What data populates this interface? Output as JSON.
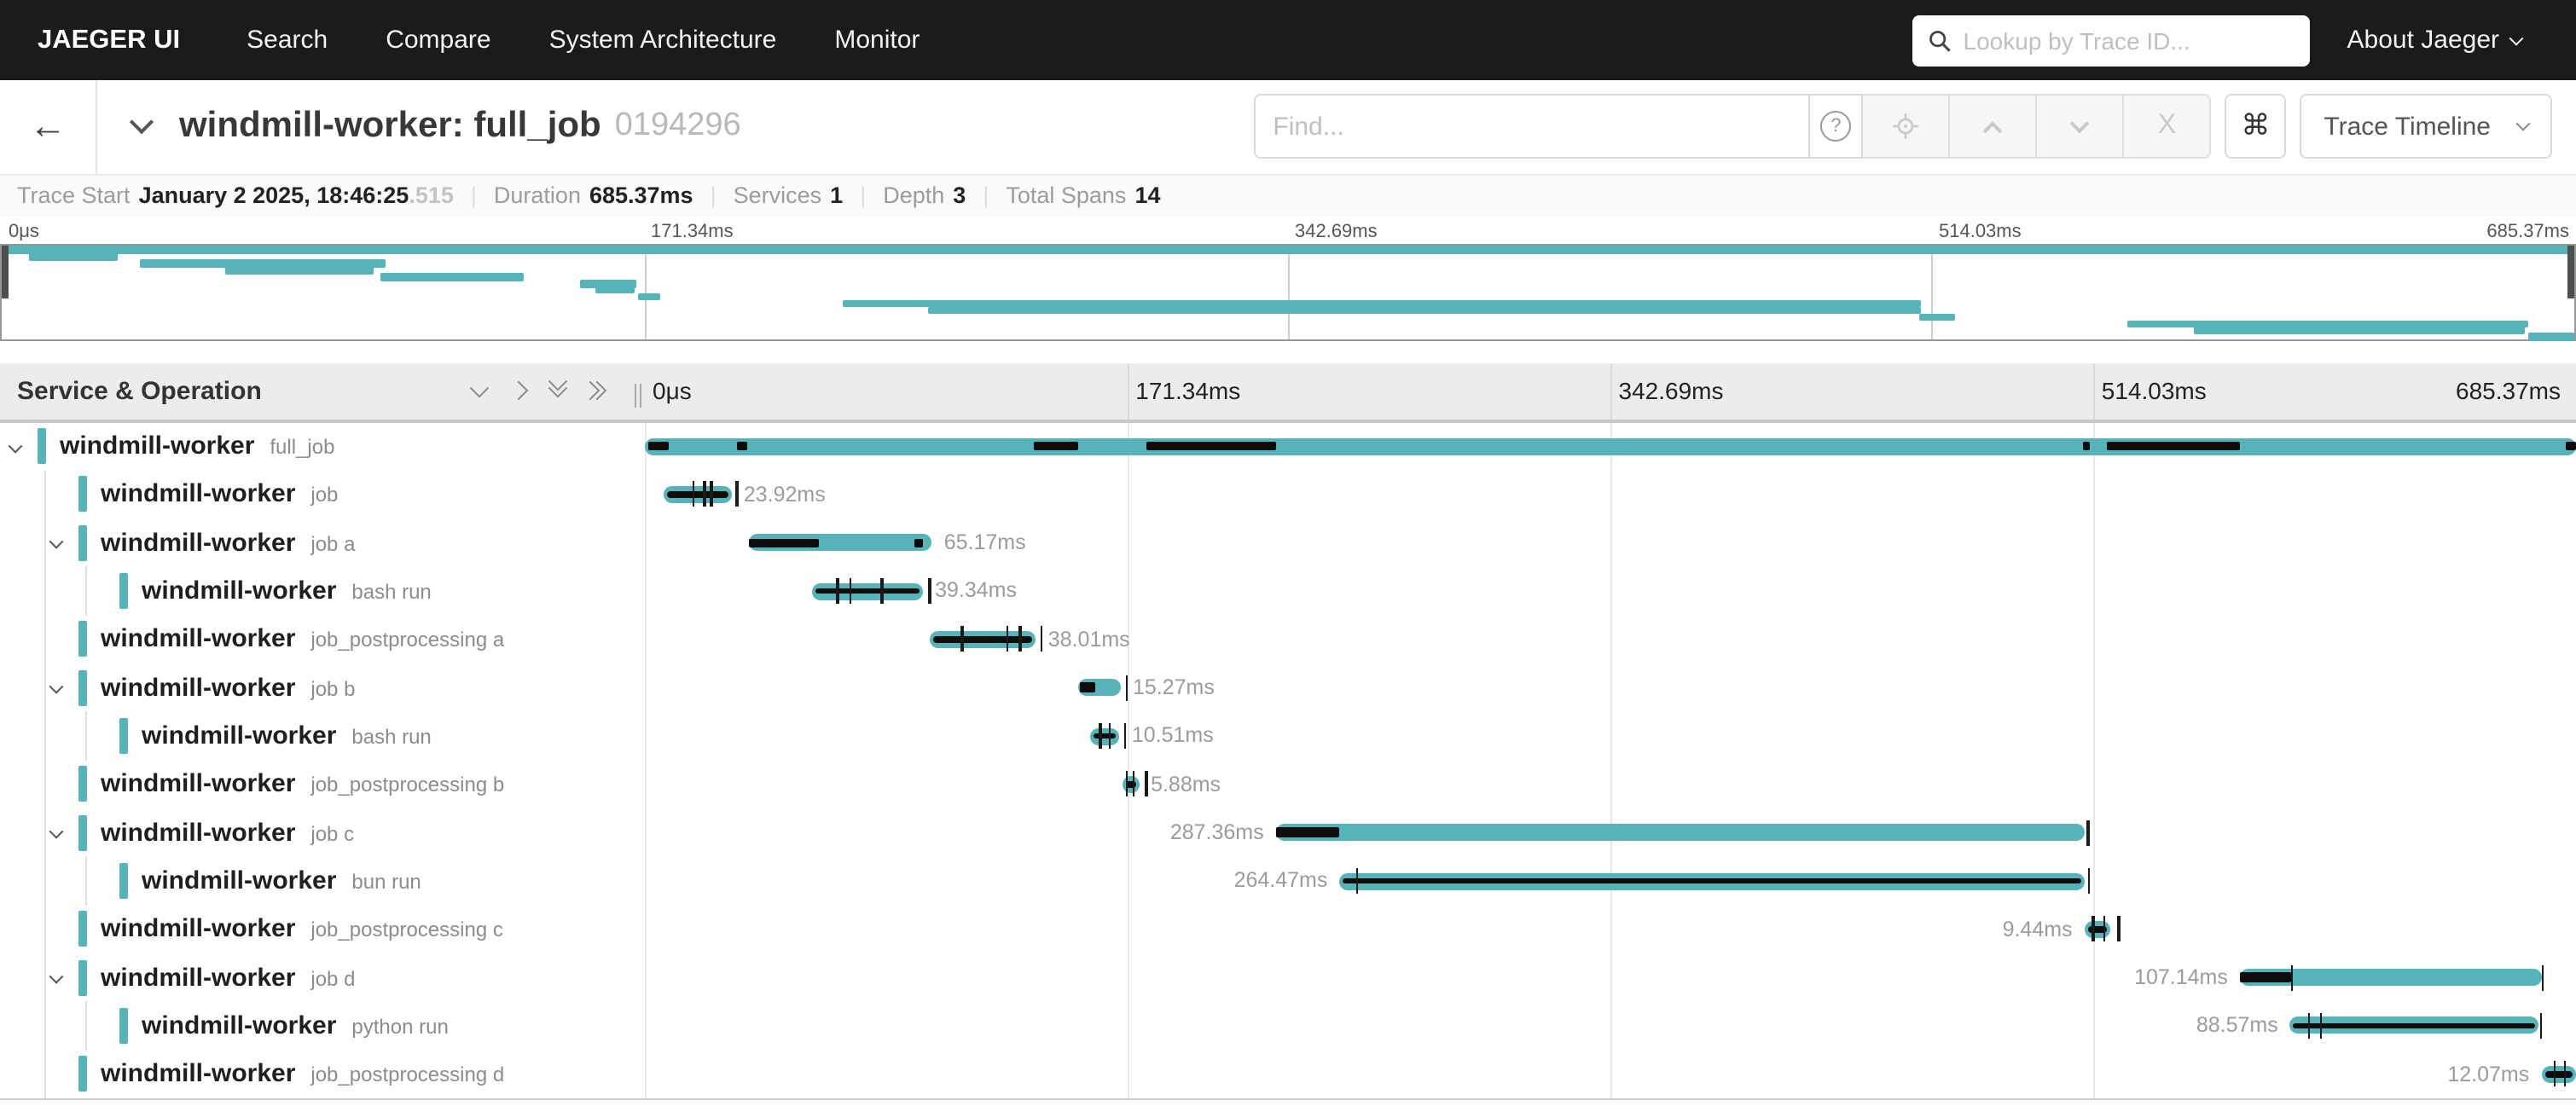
{
  "colors": {
    "accent": "#56b3ba",
    "overlay_black": "#0d0d0d",
    "nav_bg": "#1b1b1b",
    "header_bg": "#ececec",
    "label_gray": "#9b9b9b"
  },
  "nav": {
    "brand": "JAEGER UI",
    "items": [
      {
        "label": "Search"
      },
      {
        "label": "Compare"
      },
      {
        "label": "System Architecture"
      },
      {
        "label": "Monitor"
      }
    ],
    "search_placeholder": "Lookup by Trace ID...",
    "about_label": "About Jaeger"
  },
  "trace_header": {
    "title": "windmill-worker: full_job",
    "trace_id_short": "0194296",
    "find_placeholder": "Find...",
    "view_selector": "Trace Timeline"
  },
  "summary": {
    "items": [
      {
        "label": "Trace Start",
        "value": "January 2 2025, 18:46:25",
        "suffix": ".515"
      },
      {
        "label": "Duration",
        "value": "685.37ms"
      },
      {
        "label": "Services",
        "value": "1"
      },
      {
        "label": "Depth",
        "value": "3"
      },
      {
        "label": "Total Spans",
        "value": "14"
      }
    ]
  },
  "timeline": {
    "col_header": "Service & Operation",
    "ticks": [
      {
        "label": "0μs",
        "pct": 0
      },
      {
        "label": "171.34ms",
        "pct": 25
      },
      {
        "label": "342.69ms",
        "pct": 50
      },
      {
        "label": "514.03ms",
        "pct": 75
      },
      {
        "label": "685.37ms",
        "pct": 100
      }
    ]
  },
  "spans": [
    {
      "service": "windmill-worker",
      "operation": "full_job",
      "depth": 0,
      "parent": true,
      "start_pct": 0,
      "width_pct": 100,
      "duration_label": "",
      "label_side": "none",
      "stripe": false,
      "overlay_blocks": [
        [
          0.002,
          0.011
        ],
        [
          0.048,
          0.005
        ],
        [
          0.202,
          0.023
        ],
        [
          0.26,
          0.067
        ],
        [
          0.745,
          0.003
        ],
        [
          0.757,
          0.069
        ],
        [
          0.995,
          0.005
        ]
      ],
      "ticks": []
    },
    {
      "service": "windmill-worker",
      "operation": "job",
      "depth": 1,
      "parent": false,
      "start_pct": 1.05,
      "width_pct": 3.49,
      "duration_label": "23.92ms",
      "label_side": "right",
      "stripe": true,
      "overlay_blocks": [],
      "ticks": [
        0.42,
        0.58,
        0.68,
        1.06
      ]
    },
    {
      "service": "windmill-worker",
      "operation": "job a",
      "depth": 1,
      "parent": true,
      "start_pct": 5.4,
      "width_pct": 9.51,
      "duration_label": "65.17ms",
      "label_side": "right",
      "stripe": false,
      "overlay_blocks": [
        [
          0.0,
          0.38
        ],
        [
          0.9,
          0.05
        ]
      ],
      "ticks": []
    },
    {
      "service": "windmill-worker",
      "operation": "bash run",
      "depth": 2,
      "parent": false,
      "start_pct": 8.7,
      "width_pct": 5.74,
      "duration_label": "39.34ms",
      "label_side": "right",
      "stripe": true,
      "overlay_blocks": [],
      "ticks": [
        0.22,
        0.34,
        0.62,
        1.05
      ]
    },
    {
      "service": "windmill-worker",
      "operation": "job_postprocessing a",
      "depth": 1,
      "parent": false,
      "start_pct": 14.75,
      "width_pct": 5.55,
      "duration_label": "38.01ms",
      "label_side": "right",
      "stripe": true,
      "overlay_blocks": [],
      "ticks": [
        0.3,
        0.72,
        0.84,
        1.04
      ]
    },
    {
      "service": "windmill-worker",
      "operation": "job b",
      "depth": 1,
      "parent": true,
      "start_pct": 22.45,
      "width_pct": 2.23,
      "duration_label": "15.27ms",
      "label_side": "right",
      "stripe": false,
      "overlay_blocks": [
        [
          0.06,
          0.36
        ]
      ],
      "ticks": [
        1.12
      ]
    },
    {
      "service": "windmill-worker",
      "operation": "bash run",
      "depth": 2,
      "parent": false,
      "start_pct": 23.1,
      "width_pct": 1.53,
      "duration_label": "10.51ms",
      "label_side": "right",
      "stripe": true,
      "overlay_blocks": [],
      "ticks": [
        0.3,
        0.6,
        1.15
      ]
    },
    {
      "service": "windmill-worker",
      "operation": "job_postprocessing b",
      "depth": 1,
      "parent": false,
      "start_pct": 24.75,
      "width_pct": 0.86,
      "duration_label": "5.88ms",
      "label_side": "right",
      "stripe": true,
      "overlay_blocks": [],
      "ticks": [
        0.2,
        0.6,
        1.4
      ]
    },
    {
      "service": "windmill-worker",
      "operation": "job c",
      "depth": 1,
      "parent": true,
      "start_pct": 32.7,
      "width_pct": 41.9,
      "duration_label": "287.36ms",
      "label_side": "left",
      "stripe": false,
      "overlay_blocks": [
        [
          0.0,
          0.078
        ]
      ],
      "ticks": [
        1.002
      ]
    },
    {
      "service": "windmill-worker",
      "operation": "bun run",
      "depth": 2,
      "parent": false,
      "start_pct": 36.0,
      "width_pct": 38.6,
      "duration_label": "264.47ms",
      "label_side": "left",
      "stripe": true,
      "overlay_blocks": [],
      "ticks": [
        0.022,
        1.003
      ]
    },
    {
      "service": "windmill-worker",
      "operation": "job_postprocessing c",
      "depth": 1,
      "parent": false,
      "start_pct": 74.55,
      "width_pct": 1.38,
      "duration_label": "9.44ms",
      "label_side": "left",
      "stripe": true,
      "overlay_blocks": [],
      "ticks": [
        0.3,
        0.7,
        1.25
      ]
    },
    {
      "service": "windmill-worker",
      "operation": "job d",
      "depth": 1,
      "parent": true,
      "start_pct": 82.6,
      "width_pct": 15.6,
      "duration_label": "107.14ms",
      "label_side": "left",
      "stripe": false,
      "overlay_blocks": [
        [
          0.0,
          0.17
        ]
      ],
      "ticks": [
        0.17,
        1.003
      ]
    },
    {
      "service": "windmill-worker",
      "operation": "python run",
      "depth": 2,
      "parent": false,
      "start_pct": 85.2,
      "width_pct": 12.9,
      "duration_label": "88.57ms",
      "label_side": "left",
      "stripe": true,
      "overlay_blocks": [],
      "ticks": [
        0.07,
        0.12,
        1.003
      ]
    },
    {
      "service": "windmill-worker",
      "operation": "job_postprocessing d",
      "depth": 1,
      "parent": false,
      "start_pct": 98.2,
      "width_pct": 1.8,
      "duration_label": "12.07ms",
      "label_side": "left",
      "stripe": true,
      "overlay_blocks": [],
      "ticks": [
        0.35,
        0.65
      ]
    }
  ]
}
